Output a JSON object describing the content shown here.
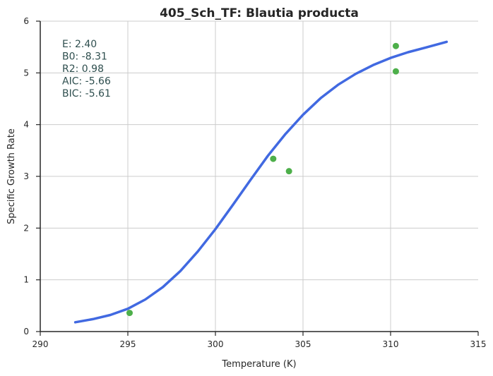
{
  "chart_data": {
    "type": "scatter",
    "title": "405_Sch_TF: Blautia producta",
    "xlabel": "Temperature (K)",
    "ylabel": "Specific Growth Rate",
    "xlim": [
      290,
      315
    ],
    "ylim": [
      0,
      6
    ],
    "xticks": [
      "290",
      "295",
      "300",
      "305",
      "310",
      "315"
    ],
    "yticks": [
      "0",
      "1",
      "2",
      "3",
      "4",
      "5",
      "6"
    ],
    "grid": true,
    "points": [
      {
        "x": 295.1,
        "y": 0.36
      },
      {
        "x": 303.3,
        "y": 3.34
      },
      {
        "x": 304.2,
        "y": 3.1
      },
      {
        "x": 310.3,
        "y": 5.52
      },
      {
        "x": 310.3,
        "y": 5.03
      }
    ],
    "fit_curve": [
      {
        "x": 292.0,
        "y": 0.18
      },
      {
        "x": 293.0,
        "y": 0.24
      },
      {
        "x": 294.0,
        "y": 0.32
      },
      {
        "x": 295.0,
        "y": 0.44
      },
      {
        "x": 296.0,
        "y": 0.62
      },
      {
        "x": 297.0,
        "y": 0.86
      },
      {
        "x": 298.0,
        "y": 1.17
      },
      {
        "x": 299.0,
        "y": 1.55
      },
      {
        "x": 300.0,
        "y": 1.98
      },
      {
        "x": 301.0,
        "y": 2.45
      },
      {
        "x": 302.0,
        "y": 2.93
      },
      {
        "x": 303.0,
        "y": 3.4
      },
      {
        "x": 304.0,
        "y": 3.82
      },
      {
        "x": 305.0,
        "y": 4.19
      },
      {
        "x": 306.0,
        "y": 4.51
      },
      {
        "x": 307.0,
        "y": 4.77
      },
      {
        "x": 308.0,
        "y": 4.98
      },
      {
        "x": 309.0,
        "y": 5.15
      },
      {
        "x": 310.0,
        "y": 5.29
      },
      {
        "x": 311.0,
        "y": 5.4
      },
      {
        "x": 312.0,
        "y": 5.49
      },
      {
        "x": 313.2,
        "y": 5.6
      }
    ],
    "point_color": "#4daf4a",
    "curve_color": "#4169e1",
    "stats": [
      "E:  2.40",
      "B0:  -8.31",
      "R2:  0.98",
      "AIC: -5.66",
      "BIC: -5.61"
    ]
  }
}
